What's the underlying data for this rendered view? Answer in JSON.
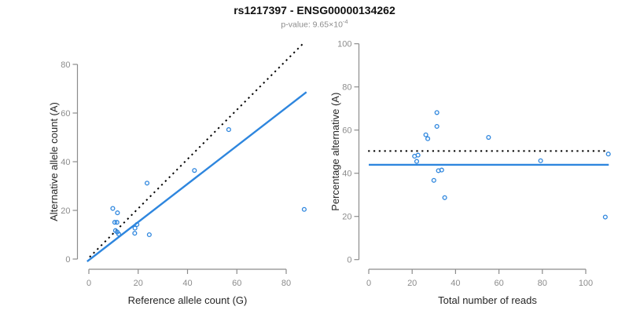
{
  "header": {
    "title": "rs1217397 - ENSG00000134262",
    "p_value_label": "p-value: ",
    "p_value_mantissa": "9.65×10",
    "p_value_exponent": "-4"
  },
  "colors": {
    "points": "#2E86DE",
    "regression_line": "#2E86DE",
    "reference_line": "#000000",
    "axis": "#8C8C8C",
    "tick_label": "#8C8C8C",
    "axis_title": "#262626",
    "subtitle": "#8C8C8C"
  },
  "chart_data": [
    {
      "type": "scatter",
      "title": "",
      "xlabel": "Reference allele count (G)",
      "ylabel": "Alternative allele count (A)",
      "xlim": [
        0,
        88
      ],
      "ylim": [
        0,
        89
      ],
      "xticks": [
        0,
        20,
        40,
        60,
        80
      ],
      "yticks": [
        0,
        20,
        40,
        60,
        80
      ],
      "grid": false,
      "legend": false,
      "points": [
        [
          9.7,
          20.8
        ],
        [
          11.6,
          19.0
        ],
        [
          10.5,
          15.1
        ],
        [
          11.4,
          15.1
        ],
        [
          10.8,
          11.7
        ],
        [
          11.5,
          11.1
        ],
        [
          12.1,
          10.3
        ],
        [
          19.5,
          14.2
        ],
        [
          18.7,
          12.7
        ],
        [
          18.6,
          10.6
        ],
        [
          24.5,
          10.0
        ],
        [
          23.6,
          31.2
        ],
        [
          42.8,
          36.4
        ],
        [
          56.7,
          53.2
        ],
        [
          87.3,
          20.4
        ]
      ],
      "lines": [
        {
          "label": "identity-line",
          "style": "dotted",
          "from": [
            0.3,
            0.8
          ],
          "to": [
            86.9,
            88.6
          ]
        },
        {
          "label": "regression-line",
          "style": "solid",
          "from": [
            -0.7,
            -1.0
          ],
          "to": [
            88.2,
            68.6
          ]
        }
      ]
    },
    {
      "type": "scatter",
      "title": "",
      "xlabel": "Total number of reads",
      "ylabel": "Percentage alternative (A)",
      "xlim": [
        0,
        111
      ],
      "ylim": [
        0,
        100
      ],
      "xticks": [
        0,
        20,
        40,
        60,
        80,
        100
      ],
      "yticks": [
        0,
        20,
        40,
        60,
        80,
        100
      ],
      "grid": false,
      "legend": false,
      "points": [
        [
          31.4,
          68.1
        ],
        [
          31.4,
          61.7
        ],
        [
          26.3,
          57.8
        ],
        [
          27.2,
          56.0
        ],
        [
          55.2,
          56.6
        ],
        [
          21.1,
          47.9
        ],
        [
          22.7,
          48.4
        ],
        [
          22.1,
          45.5
        ],
        [
          79.2,
          45.8
        ],
        [
          110.4,
          48.9
        ],
        [
          32.1,
          41.2
        ],
        [
          33.6,
          41.5
        ],
        [
          30.0,
          36.7
        ],
        [
          35.0,
          28.7
        ],
        [
          109.0,
          19.7
        ]
      ],
      "lines": [
        {
          "label": "expected-50pct-line",
          "style": "dotted",
          "from": [
            -0.3,
            50.3
          ],
          "to": [
            109.0,
            50.3
          ]
        },
        {
          "label": "mean-percentage-line",
          "style": "solid",
          "from": [
            0.0,
            43.9
          ],
          "to": [
            110.6,
            43.9
          ]
        }
      ]
    }
  ]
}
